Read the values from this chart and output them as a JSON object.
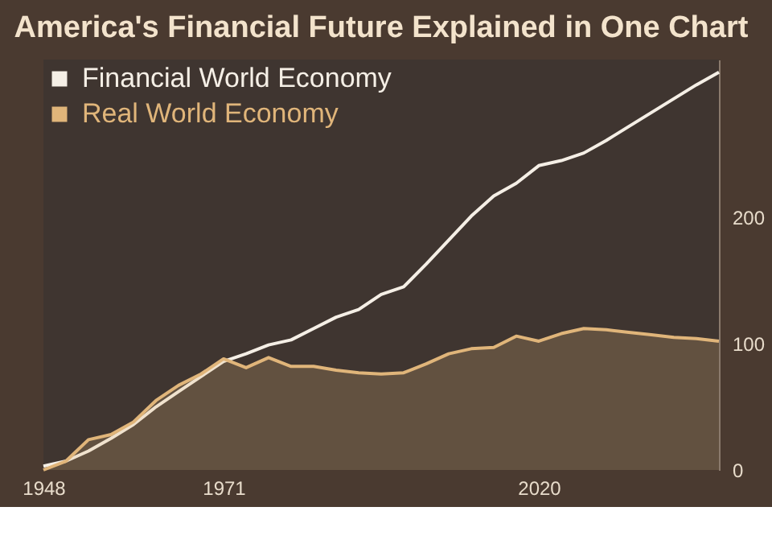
{
  "chart_data": {
    "type": "line",
    "title": "America's Financial Future Explained in One Chart",
    "categories": [
      "1948",
      null,
      null,
      null,
      null,
      null,
      null,
      null,
      "1971",
      null,
      null,
      null,
      null,
      null,
      null,
      null,
      null,
      null,
      null,
      null,
      null,
      null,
      "2020",
      null,
      null,
      null,
      null,
      null,
      null,
      null,
      null
    ],
    "series": [
      {
        "name": "Financial World Economy",
        "color": "#f5efe6",
        "values": [
          3,
          7,
          15,
          25,
          36,
          50,
          62,
          74,
          86,
          92,
          99,
          103,
          112,
          121,
          127,
          139,
          145,
          163,
          182,
          201,
          217,
          227,
          241,
          245,
          251,
          261,
          272,
          283,
          294,
          305,
          315
        ]
      },
      {
        "name": "Real World Economy",
        "color": "#e0b57a",
        "type": "area",
        "values": [
          0,
          7,
          24,
          28,
          38,
          55,
          67,
          76,
          88,
          81,
          89,
          82,
          82,
          79,
          77,
          76,
          77,
          84,
          92,
          96,
          97,
          106,
          102,
          108,
          112,
          111,
          109,
          107,
          105,
          104,
          102
        ]
      }
    ],
    "ylim": [
      0,
      325
    ],
    "yticks": [
      0,
      100,
      200
    ],
    "grid": false,
    "legend": "top left"
  }
}
